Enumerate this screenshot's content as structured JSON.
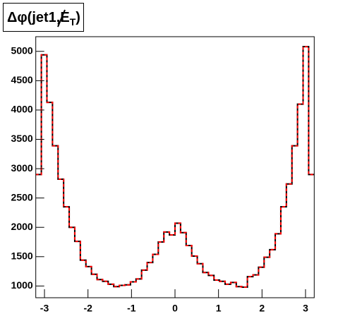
{
  "chart_data": {
    "type": "histogram",
    "title": {
      "prefix": "Δφ(jet1,",
      "met": "E",
      "sub": "T",
      "suffix": ")"
    },
    "bins": [
      -3.2,
      -3.072,
      -2.944,
      -2.816,
      -2.688,
      -2.56,
      -2.432,
      -2.304,
      -2.176,
      -2.048,
      -1.92,
      -1.792,
      -1.664,
      -1.536,
      -1.408,
      -1.28,
      -1.152,
      -1.024,
      -0.896,
      -0.768,
      -0.64,
      -0.512,
      -0.384,
      -0.256,
      -0.128,
      0,
      0.128,
      0.256,
      0.384,
      0.512,
      0.64,
      0.768,
      0.896,
      1.024,
      1.152,
      1.28,
      1.408,
      1.536,
      1.664,
      1.792,
      1.92,
      2.048,
      2.176,
      2.304,
      2.432,
      2.56,
      2.688,
      2.816,
      2.944,
      3.072,
      3.2
    ],
    "values": [
      2900,
      4940,
      4130,
      3390,
      2820,
      2350,
      2000,
      1760,
      1440,
      1330,
      1200,
      1110,
      1080,
      1030,
      990,
      1010,
      1020,
      1070,
      1120,
      1270,
      1400,
      1540,
      1750,
      1920,
      1870,
      2070,
      1910,
      1690,
      1510,
      1380,
      1230,
      1180,
      1100,
      1080,
      1030,
      1060,
      990,
      980,
      1160,
      1190,
      1320,
      1490,
      1620,
      1890,
      2350,
      2740,
      3390,
      4100,
      5080,
      2900
    ],
    "colors": [
      "#000000",
      "#ff0000"
    ],
    "xlim": [
      -3.2,
      3.2
    ],
    "xticks": [
      -3,
      -2,
      -1,
      0,
      1,
      2,
      3
    ],
    "ylim": [
      800,
      5250
    ],
    "yticks": [
      1000,
      1500,
      2000,
      2500,
      3000,
      3500,
      4000,
      4500,
      5000
    ]
  }
}
